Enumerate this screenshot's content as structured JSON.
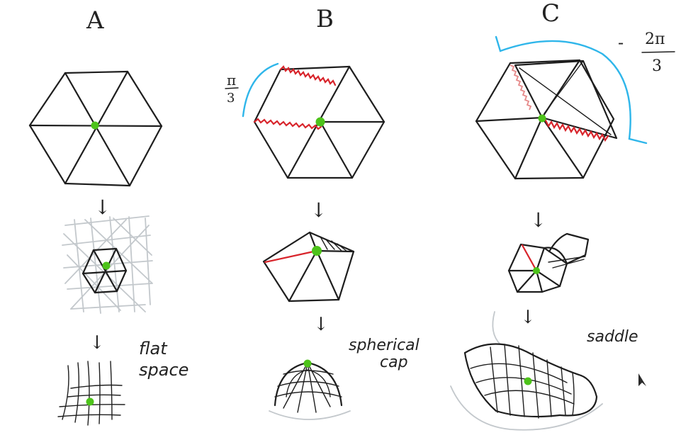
{
  "panels": [
    {
      "id": "A",
      "label": "A",
      "caption_line1": "flat",
      "caption_line2": "space"
    },
    {
      "id": "B",
      "label": "B",
      "caption_line1": "spherical",
      "caption_line2": "cap",
      "angle_numerator": "π",
      "angle_denominator": "3"
    },
    {
      "id": "C",
      "label": "C",
      "caption_line1": "saddle",
      "angle_sign": "-",
      "angle_numerator": "2π",
      "angle_denominator": "3"
    }
  ],
  "arrow_glyph": "↓",
  "colors": {
    "ink": "#1e1e1e",
    "vertex": "#4dc31a",
    "cut": "#d8242b",
    "angle": "#2fb6ea",
    "grid": "#c3c8cc"
  }
}
